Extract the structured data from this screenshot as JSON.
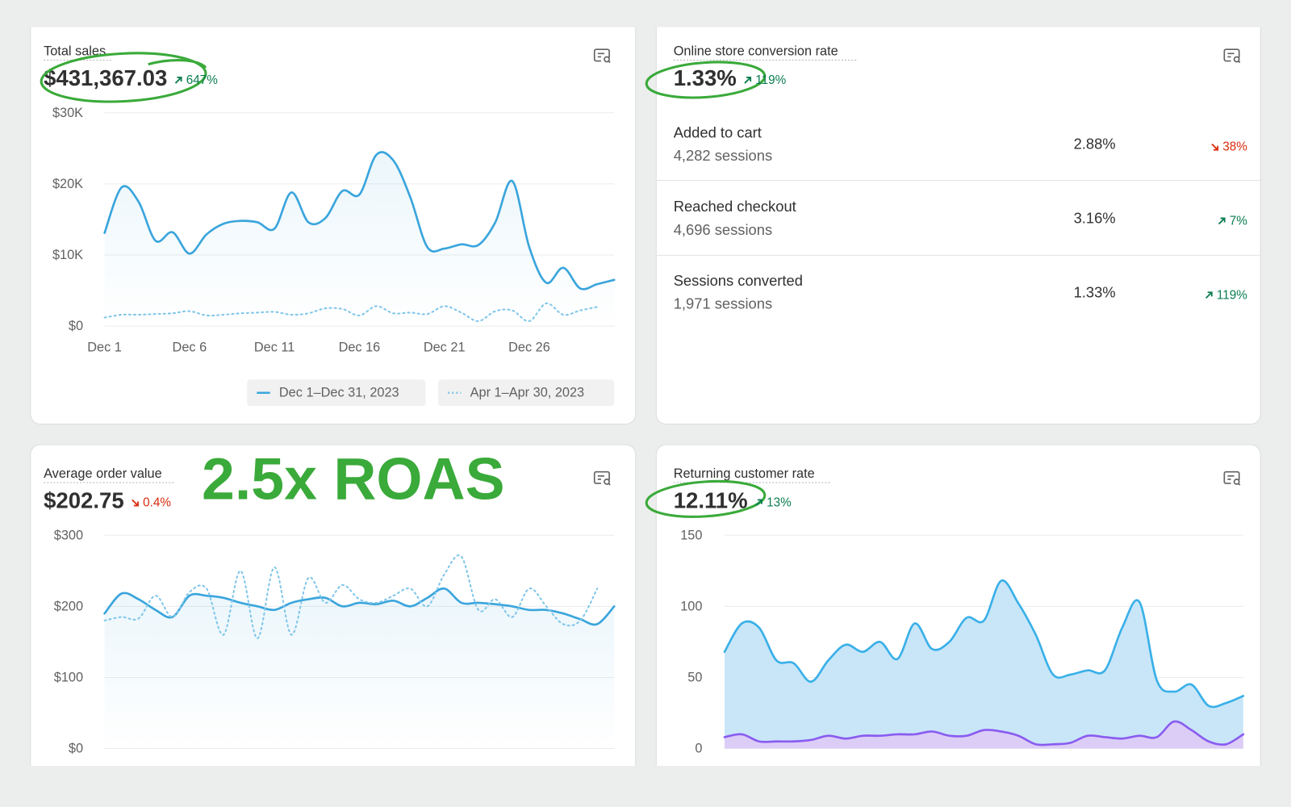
{
  "annotation": "2.5x ROAS",
  "chart_data": [
    {
      "type": "line",
      "title": "Total sales",
      "metric": "$431,367.03",
      "change": "647%",
      "change_dir": "up",
      "categories": [
        "Dec 1",
        null,
        null,
        null,
        null,
        "Dec 6",
        null,
        null,
        null,
        null,
        "Dec 11",
        null,
        null,
        null,
        null,
        "Dec 16",
        null,
        null,
        null,
        null,
        "Dec 21",
        null,
        null,
        null,
        null,
        "Dec 26",
        null,
        null,
        null,
        null,
        null
      ],
      "series": [
        {
          "name": "Dec 1–Dec 31, 2023",
          "color": "#3aa5dc",
          "dash": "solid",
          "values": [
            13100,
            19500,
            17500,
            12000,
            13200,
            10200,
            12900,
            14400,
            14800,
            14600,
            13700,
            18800,
            14600,
            15200,
            19000,
            18500,
            24100,
            23300,
            18100,
            11100,
            10900,
            11500,
            11400,
            14600,
            20400,
            11100,
            6100,
            8200,
            5300,
            5900,
            6500
          ]
        },
        {
          "name": "Apr 1–Apr 30, 2023",
          "color": "#80c6ea",
          "dash": "dotted",
          "values": [
            1200,
            1600,
            1600,
            1700,
            1800,
            2100,
            1500,
            1600,
            1800,
            1900,
            2000,
            1600,
            1800,
            2500,
            2400,
            1500,
            2800,
            1800,
            1900,
            1700,
            2800,
            1900,
            700,
            2100,
            2200,
            700,
            3200,
            1600,
            2200,
            2700,
            null
          ]
        }
      ],
      "ylim": [
        0,
        30000
      ],
      "yticks": [
        {
          "value": 0,
          "label": "$0"
        },
        {
          "value": 10000,
          "label": "$10K"
        },
        {
          "value": 20000,
          "label": "$20K"
        },
        {
          "value": 30000,
          "label": "$30K"
        }
      ],
      "grid": true,
      "legend": "bottom-right"
    },
    {
      "type": "line",
      "title": "Average order value",
      "metric": "$202.75",
      "change": "0.4%",
      "change_dir": "down",
      "series": [
        {
          "color": "#3aa5dc",
          "dash": "solid",
          "values": [
            190,
            218,
            210,
            195,
            185,
            215,
            215,
            212,
            205,
            200,
            195,
            205,
            210,
            212,
            200,
            205,
            203,
            208,
            200,
            212,
            225,
            205,
            205,
            203,
            200,
            195,
            195,
            190,
            182,
            175,
            200
          ]
        },
        {
          "color": "#80c6ea",
          "dash": "dotted",
          "values": [
            180,
            185,
            183,
            215,
            185,
            220,
            225,
            160,
            250,
            155,
            255,
            160,
            240,
            205,
            230,
            210,
            205,
            215,
            225,
            200,
            245,
            270,
            195,
            210,
            185,
            225,
            200,
            175,
            180,
            225,
            null
          ]
        }
      ],
      "ylim": [
        0,
        300
      ],
      "yticks": [
        {
          "value": 0,
          "label": "$0"
        },
        {
          "value": 100,
          "label": "$100"
        },
        {
          "value": 200,
          "label": "$200"
        },
        {
          "value": 300,
          "label": "$300"
        }
      ],
      "grid": true
    },
    {
      "type": "area",
      "title": "Returning customer rate",
      "metric": "12.11%",
      "change": "13%",
      "change_dir": "up",
      "series": [
        {
          "color": "#3ab0e8",
          "fill": "#c8e6f8",
          "values": [
            68,
            88,
            85,
            62,
            60,
            47,
            62,
            73,
            68,
            75,
            63,
            88,
            70,
            75,
            92,
            90,
            118,
            102,
            80,
            52,
            52,
            55,
            55,
            85,
            103,
            48,
            40,
            45,
            30,
            32,
            37
          ]
        },
        {
          "color": "#8a5cf0",
          "fill": "#dccdf7",
          "values": [
            8,
            10,
            5,
            5,
            5,
            6,
            9,
            7,
            9,
            9,
            10,
            10,
            12,
            9,
            9,
            13,
            12,
            9,
            3,
            3,
            4,
            9,
            8,
            7,
            9,
            8,
            19,
            13,
            5,
            3,
            10
          ]
        }
      ],
      "ylim": [
        0,
        150
      ],
      "yticks": [
        0,
        50,
        100,
        150
      ],
      "grid": true
    }
  ],
  "conversion": {
    "title": "Online store conversion rate",
    "metric": "1.33%",
    "change": "119%",
    "change_dir": "up",
    "rows": [
      {
        "label": "Added to cart",
        "sessions": "4,282 sessions",
        "value": "2.88%",
        "change": "38%",
        "change_dir": "down"
      },
      {
        "label": "Reached checkout",
        "sessions": "4,696 sessions",
        "value": "3.16%",
        "change": "7%",
        "change_dir": "up"
      },
      {
        "label": "Sessions converted",
        "sessions": "1,971 sessions",
        "value": "1.33%",
        "change": "119%",
        "change_dir": "up"
      }
    ]
  }
}
